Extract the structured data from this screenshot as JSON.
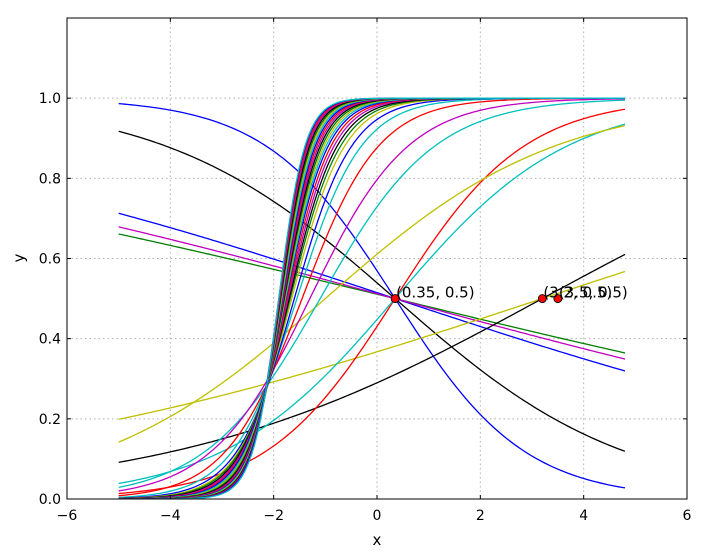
{
  "chart_data": {
    "type": "line",
    "title": "",
    "xlabel": "x",
    "ylabel": "y",
    "xlim": [
      -6,
      6
    ],
    "ylim": [
      0,
      1.2
    ],
    "x_ticks": [
      -6,
      -4,
      -2,
      0,
      2,
      4,
      6
    ],
    "y_ticks": [
      0.0,
      0.2,
      0.4,
      0.6,
      0.8,
      1.0
    ],
    "x_tick_labels": [
      "−6",
      "−4",
      "−2",
      "0",
      "2",
      "4",
      "6"
    ],
    "y_tick_labels": [
      "0.0",
      "0.2",
      "0.4",
      "0.6",
      "0.8",
      "1.0"
    ],
    "grid": true,
    "x_range": [
      -5,
      4.8
    ],
    "curve_form": "y = 1 / (1 + exp(-k * (x - c)))",
    "series": [
      {
        "k": -0.8,
        "c": 0.35,
        "color": "#0000ff"
      },
      {
        "k": -0.45,
        "c": 0.35,
        "color": "#000000"
      },
      {
        "k": -0.17,
        "c": 0.35,
        "color": "#0000ff"
      },
      {
        "k": -0.125,
        "c": 0.35,
        "color": "#008000"
      },
      {
        "k": -0.14,
        "c": 0.35,
        "color": "#c000c0"
      },
      {
        "k": 0.17,
        "c": 3.2,
        "color": "#bfbf00"
      },
      {
        "k": 0.28,
        "c": 3.2,
        "color": "#000000"
      },
      {
        "k": 0.8,
        "c": 0.35,
        "color": "#ff0000"
      },
      {
        "k": 0.6,
        "c": 0.35,
        "color": "#00bfbf"
      },
      {
        "k": 0.45,
        "c": -1.0,
        "color": "#bfbf00"
      },
      {
        "k": 0.9,
        "c": -1.1,
        "color": "#00bfbf"
      },
      {
        "k": 1.05,
        "c": -1.3,
        "color": "#c000c0"
      },
      {
        "k": 1.35,
        "c": -1.45,
        "color": "#ff0000"
      },
      {
        "k": 1.6,
        "c": -1.55,
        "color": "#00bfbf"
      },
      {
        "k": 1.8,
        "c": -1.6,
        "color": "#0000ff"
      },
      {
        "k": 1.95,
        "c": -1.65,
        "color": "#bfbf00"
      },
      {
        "k": 2.05,
        "c": -1.68,
        "color": "#008000"
      },
      {
        "k": 2.15,
        "c": -1.7,
        "color": "#000000"
      },
      {
        "k": 2.25,
        "c": -1.72,
        "color": "#c000c0"
      },
      {
        "k": 2.35,
        "c": -1.74,
        "color": "#ff0000"
      },
      {
        "k": 2.45,
        "c": -1.76,
        "color": "#0000ff"
      },
      {
        "k": 2.55,
        "c": -1.77,
        "color": "#00bfbf"
      },
      {
        "k": 2.65,
        "c": -1.78,
        "color": "#bfbf00"
      },
      {
        "k": 2.75,
        "c": -1.79,
        "color": "#008000"
      },
      {
        "k": 2.85,
        "c": -1.8,
        "color": "#000000"
      },
      {
        "k": 2.95,
        "c": -1.81,
        "color": "#c000c0"
      },
      {
        "k": 3.05,
        "c": -1.82,
        "color": "#ff0000"
      },
      {
        "k": 3.15,
        "c": -1.83,
        "color": "#0000ff"
      },
      {
        "k": 3.25,
        "c": -1.84,
        "color": "#00bfbf"
      },
      {
        "k": 3.35,
        "c": -1.85,
        "color": "#bfbf00"
      },
      {
        "k": 3.45,
        "c": -1.86,
        "color": "#008000"
      },
      {
        "k": 3.55,
        "c": -1.87,
        "color": "#000000"
      },
      {
        "k": 3.65,
        "c": -1.88,
        "color": "#c000c0"
      },
      {
        "k": 3.75,
        "c": -1.89,
        "color": "#ff0000"
      },
      {
        "k": 3.85,
        "c": -1.9,
        "color": "#0000ff"
      },
      {
        "k": 3.95,
        "c": -1.9,
        "color": "#00bfbf"
      }
    ],
    "points": [
      {
        "x": 0.35,
        "y": 0.5,
        "label": "(0.35, 0.5)",
        "color": "#ff0000"
      },
      {
        "x": 3.2,
        "y": 0.5,
        "label": "(3.2, 0.5)",
        "color": "#ff0000"
      },
      {
        "x": 3.5,
        "y": 0.5,
        "label": "(3.5, 0.5)",
        "color": "#ff0000"
      }
    ]
  }
}
